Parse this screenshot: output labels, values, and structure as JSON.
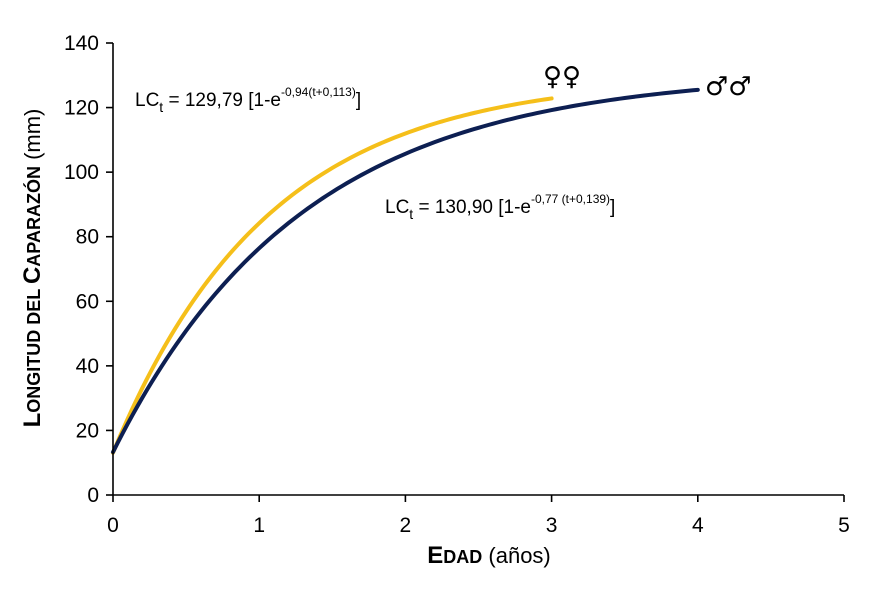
{
  "chart_data": {
    "type": "line",
    "xlabel": {
      "cap": "E",
      "rest": "DAD",
      "unit": "(años)"
    },
    "ylabel": {
      "cap1": "L",
      "rest1": "ONGITUD DEL ",
      "cap2": "C",
      "rest2": "APARAZÓN",
      "unit": "(mm)"
    },
    "xlim": [
      0,
      5
    ],
    "ylim": [
      0,
      140
    ],
    "xticks": [
      "0",
      "1",
      "2",
      "3",
      "4",
      "5"
    ],
    "yticks": [
      "0",
      "20",
      "40",
      "60",
      "80",
      "100",
      "120",
      "140"
    ],
    "grid": false,
    "series": [
      {
        "group_symbol": "♀♀",
        "color": "#f5bf1a",
        "model": {
          "Linf": 129.79,
          "k": 0.94,
          "t0": -0.113
        },
        "x_range": [
          0,
          3
        ],
        "equation": {
          "lhs": "LC",
          "sub": "t",
          "mid": " = 129,79  [1-e",
          "sup": "-0,94(t+0,113)",
          "close": "]"
        }
      },
      {
        "group_symbol": "♂♂",
        "color": "#0d1f52",
        "model": {
          "Linf": 130.9,
          "k": 0.77,
          "t0": -0.139
        },
        "x_range": [
          0,
          4
        ],
        "equation": {
          "lhs": "LC",
          "sub": "t",
          "mid": " = 130,90  [1-e",
          "sup": "-0,77 (t+0,139)",
          "close": "]"
        }
      }
    ]
  }
}
